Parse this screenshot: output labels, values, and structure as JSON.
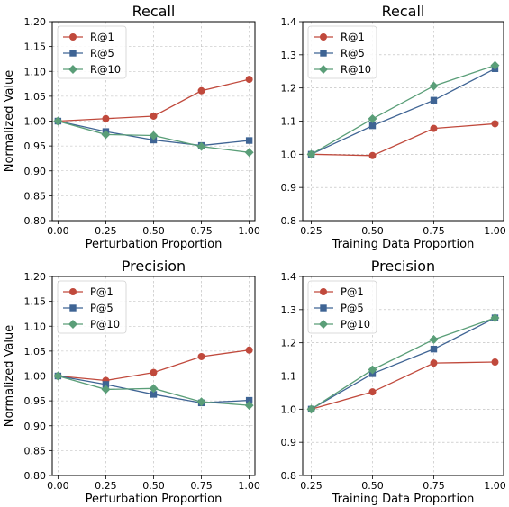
{
  "colors": {
    "s1": "#c0493c",
    "s2": "#3f6494",
    "s3": "#5a9e78",
    "grid": "#b8b8b8"
  },
  "chart_data": [
    {
      "type": "line",
      "title": "Recall",
      "xlabel": "Perturbation Proportion",
      "ylabel": "Normalized Value",
      "x": [
        0.0,
        0.25,
        0.5,
        0.75,
        1.0
      ],
      "x_ticks": [
        "0.00",
        "0.25",
        "0.50",
        "0.75",
        "1.00"
      ],
      "ylim": [
        0.8,
        1.2
      ],
      "y_ticks": [
        "0.80",
        "0.85",
        "0.90",
        "0.95",
        "1.00",
        "1.05",
        "1.10",
        "1.15",
        "1.20"
      ],
      "grid": true,
      "legend": "top-left",
      "series": [
        {
          "name": "R@1",
          "marker": "circle",
          "values": [
            1.0,
            1.005,
            1.01,
            1.061,
            1.084
          ]
        },
        {
          "name": "R@5",
          "marker": "square",
          "values": [
            1.0,
            0.979,
            0.962,
            0.951,
            0.961
          ]
        },
        {
          "name": "R@10",
          "marker": "diamond",
          "values": [
            1.0,
            0.973,
            0.971,
            0.949,
            0.937
          ]
        }
      ]
    },
    {
      "type": "line",
      "title": "Recall",
      "xlabel": "Training Data Proportion",
      "ylabel": "",
      "x": [
        0.25,
        0.5,
        0.75,
        1.0
      ],
      "x_ticks": [
        "0.25",
        "0.50",
        "0.75",
        "1.00"
      ],
      "ylim": [
        0.8,
        1.4
      ],
      "y_ticks": [
        "0.8",
        "0.9",
        "1.0",
        "1.1",
        "1.2",
        "1.3",
        "1.4"
      ],
      "grid": true,
      "legend": "top-left",
      "series": [
        {
          "name": "R@1",
          "marker": "circle",
          "values": [
            1.0,
            0.996,
            1.078,
            1.092
          ]
        },
        {
          "name": "R@5",
          "marker": "square",
          "values": [
            1.0,
            1.086,
            1.163,
            1.258
          ]
        },
        {
          "name": "R@10",
          "marker": "diamond",
          "values": [
            1.0,
            1.107,
            1.206,
            1.268
          ]
        }
      ]
    },
    {
      "type": "line",
      "title": "Precision",
      "xlabel": "Perturbation Proportion",
      "ylabel": "Normalized Value",
      "x": [
        0.0,
        0.25,
        0.5,
        0.75,
        1.0
      ],
      "x_ticks": [
        "0.00",
        "0.25",
        "0.50",
        "0.75",
        "1.00"
      ],
      "ylim": [
        0.8,
        1.2
      ],
      "y_ticks": [
        "0.80",
        "0.85",
        "0.90",
        "0.95",
        "1.00",
        "1.05",
        "1.10",
        "1.15",
        "1.20"
      ],
      "grid": true,
      "legend": "top-left",
      "series": [
        {
          "name": "P@1",
          "marker": "circle",
          "values": [
            1.0,
            0.991,
            1.007,
            1.039,
            1.052
          ]
        },
        {
          "name": "P@5",
          "marker": "square",
          "values": [
            1.0,
            0.983,
            0.963,
            0.946,
            0.951
          ]
        },
        {
          "name": "P@10",
          "marker": "diamond",
          "values": [
            1.0,
            0.973,
            0.975,
            0.948,
            0.941
          ]
        }
      ]
    },
    {
      "type": "line",
      "title": "Precision",
      "xlabel": "Training Data Proportion",
      "ylabel": "",
      "x": [
        0.25,
        0.5,
        0.75,
        1.0
      ],
      "x_ticks": [
        "0.25",
        "0.50",
        "0.75",
        "1.00"
      ],
      "ylim": [
        0.8,
        1.4
      ],
      "y_ticks": [
        "0.8",
        "0.9",
        "1.0",
        "1.1",
        "1.2",
        "1.3",
        "1.4"
      ],
      "grid": true,
      "legend": "top-left",
      "series": [
        {
          "name": "P@1",
          "marker": "circle",
          "values": [
            1.0,
            1.052,
            1.139,
            1.142
          ]
        },
        {
          "name": "P@5",
          "marker": "square",
          "values": [
            1.0,
            1.107,
            1.181,
            1.275
          ]
        },
        {
          "name": "P@10",
          "marker": "diamond",
          "values": [
            1.0,
            1.119,
            1.21,
            1.275
          ]
        }
      ]
    }
  ]
}
